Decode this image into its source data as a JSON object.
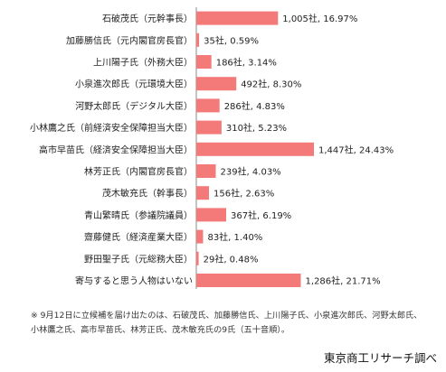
{
  "chart_data": {
    "type": "bar",
    "orientation": "horizontal",
    "categories": [
      "石破茂氏（元幹事長）",
      "加藤勝信氏（元内閣官房長官）",
      "上川陽子氏（外務大臣）",
      "小泉進次郎氏（元環境大臣）",
      "河野太郎氏（デジタル大臣）",
      "小林鷹之氏（前経済安全保障担当大臣）",
      "高市早苗氏（経済安全保障担当大臣）",
      "林芳正氏（内閣官房長官）",
      "茂木敏充氏（幹事長）",
      "青山繁晴氏（参議院議員）",
      "齋藤健氏（経済産業大臣）",
      "野田聖子氏（元総務大臣）",
      "寄与すると思う人物はいない"
    ],
    "values": [
      1005,
      35,
      186,
      492,
      286,
      310,
      1447,
      239,
      156,
      367,
      83,
      29,
      1286
    ],
    "data_labels": [
      "1,005社, 16.97%",
      "35社, 0.59%",
      "186社, 3.14%",
      "492社, 8.30%",
      "286社, 4.83%",
      "310社, 5.23%",
      "1,447社, 24.43%",
      "239社, 4.03%",
      "156社, 2.63%",
      "367社, 6.19%",
      "83社, 1.40%",
      "29社, 0.48%",
      "1,286社, 21.71%"
    ],
    "bar_color": "#f47a7a",
    "grid": false,
    "legend": "none"
  },
  "footnote": "※ 9月12日に立候補を届け出たのは、石破茂氏、加藤勝信氏、上川陽子氏、小泉進次郎氏、河野太郎氏、小林鷹之氏、高市早苗氏、林芳正氏、茂木敏充氏の9氏（五十音順）。",
  "source": "東京商工リサーチ調べ"
}
